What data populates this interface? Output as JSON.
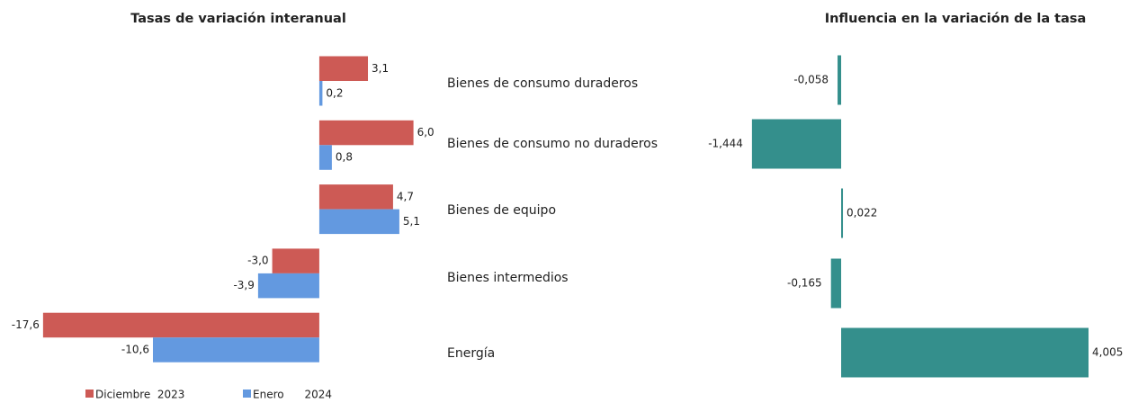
{
  "chart_data": [
    {
      "type": "bar",
      "orientation": "horizontal",
      "title": "Tasas de variación interanual",
      "categories": [
        "Bienes de consumo duraderos",
        "Bienes de consumo no duraderos",
        "Bienes de equipo",
        "Bienes intermedios",
        "Energía"
      ],
      "xlim": [
        -20,
        8
      ],
      "series": [
        {
          "name": "Diciembre  2023",
          "color": "#cd5a55",
          "values": [
            3.1,
            6.0,
            4.7,
            -3.0,
            -17.6
          ],
          "value_labels": [
            "3,1",
            "6,0",
            "4,7",
            "-3,0",
            "-17,6"
          ]
        },
        {
          "name": "Enero      2024",
          "color": "#6399e0",
          "values": [
            0.2,
            0.8,
            5.1,
            -3.9,
            -10.6
          ],
          "value_labels": [
            "0,2",
            "0,8",
            "5,1",
            "-3,9",
            "-10,6"
          ]
        }
      ]
    },
    {
      "type": "bar",
      "orientation": "horizontal",
      "title": "Influencia en la variación de la tasa",
      "xlim": [
        -2,
        4.5
      ],
      "color": "#348f8c",
      "values": [
        -0.058,
        -1.444,
        0.022,
        -0.165,
        4.005
      ],
      "value_labels": [
        "-0,058",
        "-1,444",
        "0,022",
        "-0,165",
        "4,005"
      ]
    }
  ]
}
